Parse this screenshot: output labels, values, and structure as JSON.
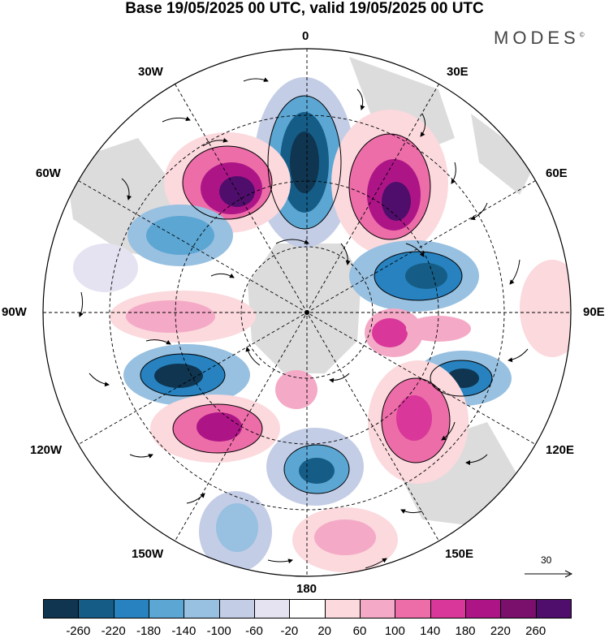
{
  "title": "Base 19/05/2025 00 UTC, valid 19/05/2025 00 UTC",
  "brand": "MODES",
  "brand_mark": "©",
  "meridian_labels": {
    "m0": "0",
    "m30e": "30E",
    "m60e": "60E",
    "m90e": "90E",
    "m120e": "120E",
    "m150e": "150E",
    "m180": "180",
    "m150w": "150W",
    "m120w": "120W",
    "m90w": "90W",
    "m60w": "60W",
    "m30w": "30W"
  },
  "reference_vector": {
    "label": "30"
  },
  "colorbar": {
    "ticks": [
      "-260",
      "-220",
      "-180",
      "-140",
      "-100",
      "-60",
      "-20",
      "20",
      "60",
      "100",
      "140",
      "180",
      "220",
      "260"
    ],
    "colors": [
      "#0f3550",
      "#155d86",
      "#2782bf",
      "#5ba6d3",
      "#98c0e0",
      "#c4cde6",
      "#e5e3f1",
      "#ffffff",
      "#fbd9dd",
      "#f4aac6",
      "#ec6da8",
      "#d9379a",
      "#ad1587",
      "#7b0f6c",
      "#4f0e6b"
    ]
  },
  "map_legend_colors": {
    "land": "#cfcfcf",
    "grid": "#000000"
  }
}
